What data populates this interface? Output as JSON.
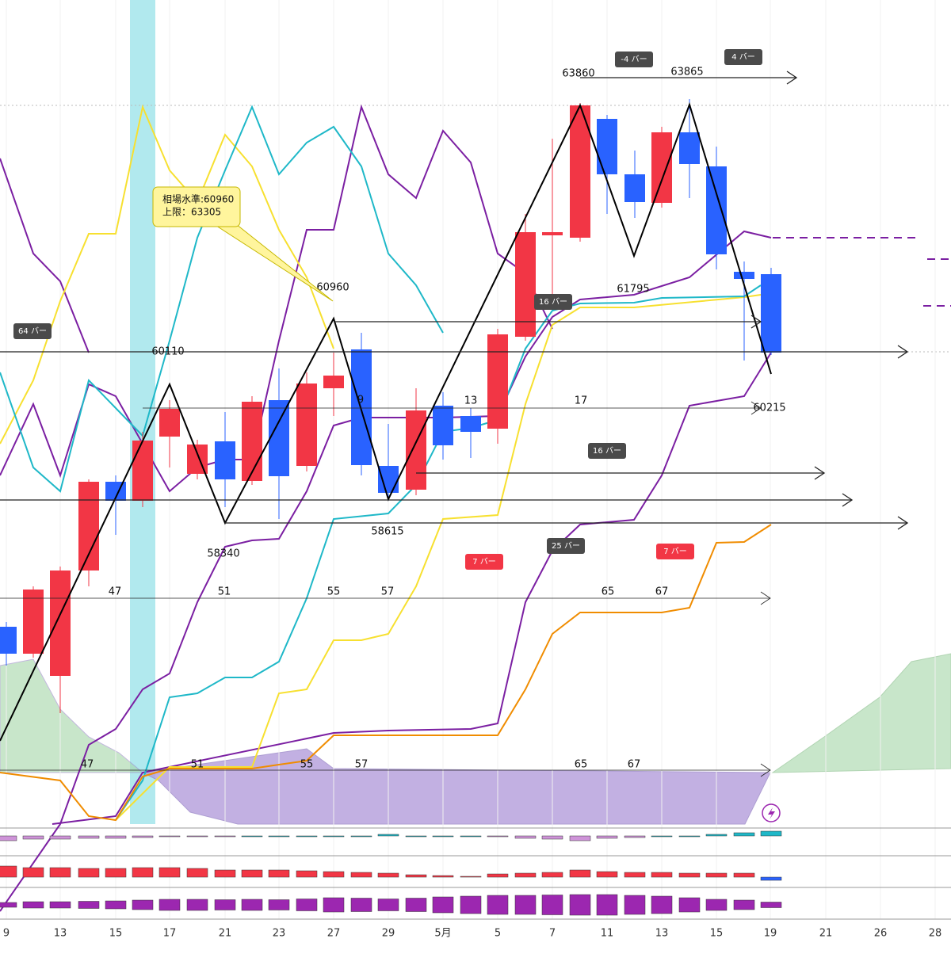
{
  "x_axis": {
    "labels": [
      "9",
      "13",
      "15",
      "17",
      "21",
      "23",
      "27",
      "29",
      "5月",
      "5",
      "7",
      "11",
      "13",
      "15",
      "19",
      "21",
      "26",
      "28"
    ]
  },
  "price_labels": [
    "63860",
    "63865",
    "60960",
    "60110",
    "61795",
    "60215",
    "58340",
    "58615"
  ],
  "count_labels": [
    "9",
    "13",
    "17",
    "47",
    "51",
    "55",
    "57",
    "65",
    "67",
    "47",
    "51",
    "55",
    "57",
    "65",
    "67"
  ],
  "badges": [
    "-4 バー",
    "4 バー",
    "16 バー",
    "64 バー",
    "16 バー",
    "25 バー",
    "7 バー",
    "7 バー"
  ],
  "callout": {
    "line1": "相場水準:60960",
    "line2": "上限：63305"
  }
}
